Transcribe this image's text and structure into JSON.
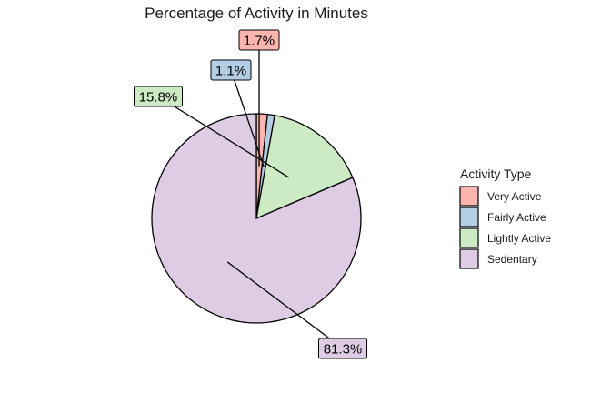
{
  "chart_data": {
    "type": "pie",
    "title": "Percentage of Activity in Minutes",
    "legend_title": "Activity Type",
    "legend_position": "right",
    "categories": [
      "Very Active",
      "Fairly Active",
      "Lightly Active",
      "Sedentary"
    ],
    "values": [
      1.7,
      1.1,
      15.8,
      81.3
    ],
    "labels": [
      "1.7%",
      "1.1%",
      "15.8%",
      "81.3%"
    ],
    "colors": [
      "#fbb4ae",
      "#b3cde3",
      "#ccebc5",
      "#decbe4"
    ],
    "start": "12 o'clock",
    "direction": "clockwise"
  }
}
